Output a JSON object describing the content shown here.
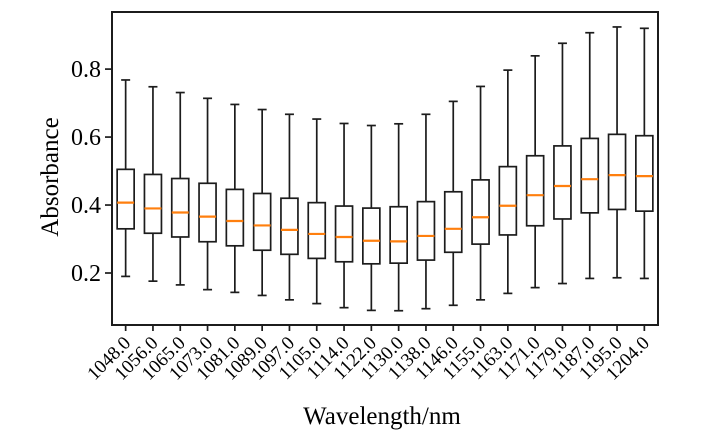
{
  "figure": {
    "background": "#ffffff"
  },
  "chart_data": {
    "type": "boxplot",
    "title": "",
    "xlabel": "Wavelength/nm",
    "ylabel": "Absorbance",
    "categories": [
      "1048.0",
      "1056.0",
      "1065.0",
      "1073.0",
      "1081.0",
      "1089.0",
      "1097.0",
      "1105.0",
      "1114.0",
      "1122.0",
      "1130.0",
      "1138.0",
      "1146.0",
      "1155.0",
      "1163.0",
      "1171.0",
      "1179.0",
      "1187.0",
      "1195.0",
      "1204.0"
    ],
    "boxes": [
      {
        "whislo": 0.19,
        "q1": 0.33,
        "med": 0.407,
        "q3": 0.505,
        "whishi": 0.768
      },
      {
        "whislo": 0.176,
        "q1": 0.317,
        "med": 0.39,
        "q3": 0.49,
        "whishi": 0.748
      },
      {
        "whislo": 0.165,
        "q1": 0.306,
        "med": 0.378,
        "q3": 0.478,
        "whishi": 0.731
      },
      {
        "whislo": 0.151,
        "q1": 0.292,
        "med": 0.366,
        "q3": 0.464,
        "whishi": 0.714
      },
      {
        "whislo": 0.143,
        "q1": 0.28,
        "med": 0.353,
        "q3": 0.446,
        "whishi": 0.696
      },
      {
        "whislo": 0.134,
        "q1": 0.267,
        "med": 0.34,
        "q3": 0.434,
        "whishi": 0.681
      },
      {
        "whislo": 0.121,
        "q1": 0.255,
        "med": 0.327,
        "q3": 0.42,
        "whishi": 0.667
      },
      {
        "whislo": 0.11,
        "q1": 0.243,
        "med": 0.315,
        "q3": 0.407,
        "whishi": 0.653
      },
      {
        "whislo": 0.098,
        "q1": 0.233,
        "med": 0.306,
        "q3": 0.397,
        "whishi": 0.64
      },
      {
        "whislo": 0.09,
        "q1": 0.227,
        "med": 0.295,
        "q3": 0.391,
        "whishi": 0.634
      },
      {
        "whislo": 0.089,
        "q1": 0.229,
        "med": 0.293,
        "q3": 0.395,
        "whishi": 0.639
      },
      {
        "whislo": 0.095,
        "q1": 0.238,
        "med": 0.309,
        "q3": 0.41,
        "whishi": 0.667
      },
      {
        "whislo": 0.105,
        "q1": 0.261,
        "med": 0.33,
        "q3": 0.439,
        "whishi": 0.705
      },
      {
        "whislo": 0.121,
        "q1": 0.285,
        "med": 0.364,
        "q3": 0.474,
        "whishi": 0.749
      },
      {
        "whislo": 0.14,
        "q1": 0.312,
        "med": 0.398,
        "q3": 0.513,
        "whishi": 0.797
      },
      {
        "whislo": 0.157,
        "q1": 0.339,
        "med": 0.429,
        "q3": 0.545,
        "whishi": 0.839
      },
      {
        "whislo": 0.169,
        "q1": 0.359,
        "med": 0.456,
        "q3": 0.574,
        "whishi": 0.876
      },
      {
        "whislo": 0.184,
        "q1": 0.377,
        "med": 0.476,
        "q3": 0.596,
        "whishi": 0.907
      },
      {
        "whislo": 0.186,
        "q1": 0.387,
        "med": 0.488,
        "q3": 0.608,
        "whishi": 0.924
      },
      {
        "whislo": 0.184,
        "q1": 0.382,
        "med": 0.485,
        "q3": 0.604,
        "whishi": 0.92
      }
    ],
    "yticks": [
      0.2,
      0.4,
      0.6,
      0.8
    ],
    "ytick_labels": [
      "0.2",
      "0.4",
      "0.6",
      "0.8"
    ],
    "ylim": [
      0.047,
      0.968
    ],
    "xtick_rotation": 45,
    "grid": false,
    "legend": null,
    "colors": {
      "line": "#1c1c1c",
      "median": "#ff7f0e",
      "box_fill": "#ffffff",
      "text": "#000000",
      "background": "#ffffff"
    }
  }
}
